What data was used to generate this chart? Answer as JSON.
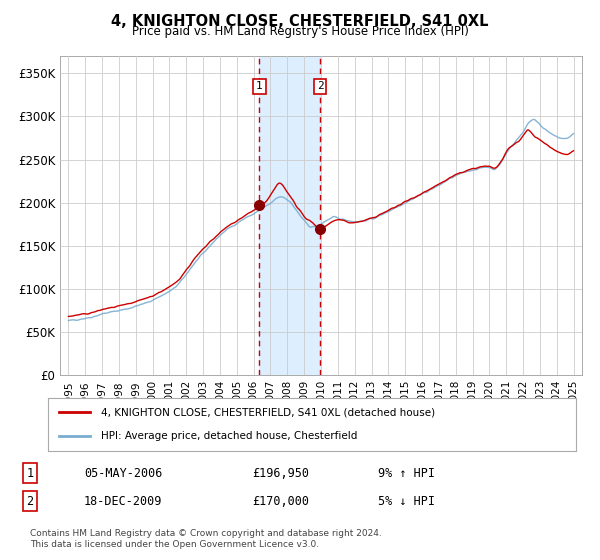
{
  "title": "4, KNIGHTON CLOSE, CHESTERFIELD, S41 0XL",
  "subtitle": "Price paid vs. HM Land Registry's House Price Index (HPI)",
  "footer": "Contains HM Land Registry data © Crown copyright and database right 2024.\nThis data is licensed under the Open Government Licence v3.0.",
  "legend_line1": "4, KNIGHTON CLOSE, CHESTERFIELD, S41 0XL (detached house)",
  "legend_line2": "HPI: Average price, detached house, Chesterfield",
  "transaction1_date": "05-MAY-2006",
  "transaction1_price": "£196,950",
  "transaction1_hpi": "9% ↑ HPI",
  "transaction2_date": "18-DEC-2009",
  "transaction2_price": "£170,000",
  "transaction2_hpi": "5% ↓ HPI",
  "sale1_x": 2006.34,
  "sale1_y": 196950,
  "sale2_x": 2009.96,
  "sale2_y": 170000,
  "vline1_x": 2006.34,
  "vline2_x": 2009.96,
  "shade_x1": 2006.34,
  "shade_x2": 2009.96,
  "red_line_color": "#cc0000",
  "blue_line_color": "#7aadcf",
  "shade_color": "#ddeeff",
  "dot_color": "#880000",
  "vline_color": "#cc0000",
  "grid_color": "#cccccc",
  "background_color": "#ffffff",
  "ylim": [
    0,
    370000
  ],
  "xlim": [
    1994.5,
    2025.5
  ],
  "yticks": [
    0,
    50000,
    100000,
    150000,
    200000,
    250000,
    300000,
    350000
  ],
  "ytick_labels": [
    "£0",
    "£50K",
    "£100K",
    "£150K",
    "£200K",
    "£250K",
    "£300K",
    "£350K"
  ],
  "xtick_years": [
    1995,
    1996,
    1997,
    1998,
    1999,
    2000,
    2001,
    2002,
    2003,
    2004,
    2005,
    2006,
    2007,
    2008,
    2009,
    2010,
    2011,
    2012,
    2013,
    2014,
    2015,
    2016,
    2017,
    2018,
    2019,
    2020,
    2021,
    2022,
    2023,
    2024,
    2025
  ]
}
